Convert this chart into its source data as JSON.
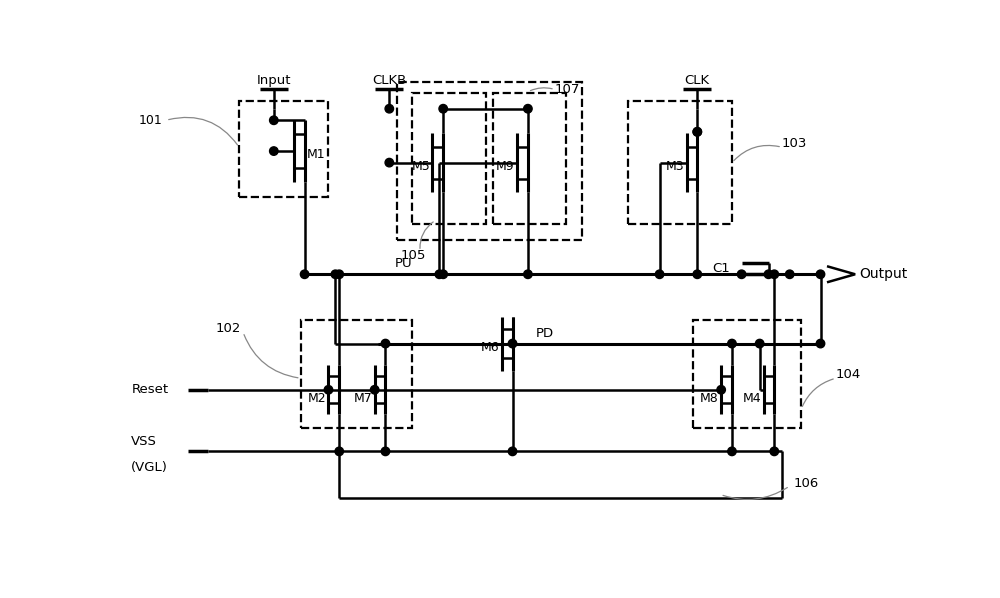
{
  "bg_color": "#ffffff",
  "figsize": [
    10.0,
    5.98
  ],
  "dpi": 100,
  "xlim": [
    0,
    100
  ],
  "ylim": [
    0,
    59.8
  ]
}
